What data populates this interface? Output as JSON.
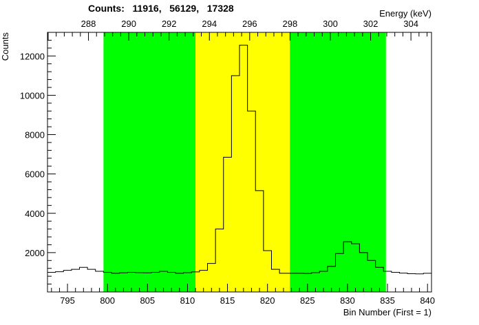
{
  "chart_data": {
    "type": "histogram",
    "title": "Counts:   11916,   56129,   17328",
    "xlabel": "Bin Number (First = 1)",
    "ylabel": "Counts",
    "x2label": "Energy (keV)",
    "xlim": [
      792.5,
      840.5
    ],
    "ylim": [
      0,
      13200
    ],
    "x_ticks": [
      795,
      800,
      805,
      810,
      815,
      820,
      825,
      830,
      835,
      840
    ],
    "y_ticks": [
      2000,
      4000,
      6000,
      8000,
      10000,
      12000
    ],
    "energy_ticks": [
      288,
      290,
      292,
      294,
      296,
      298,
      300,
      302,
      304
    ],
    "energy_bins": [
      788.3,
      840.7
    ],
    "energy_range": [
      284.3,
      305.1
    ],
    "regions": [
      {
        "name": "background-left",
        "x_range": [
          799.5,
          811.0
        ],
        "color": "#00ff00",
        "count": 11916
      },
      {
        "name": "peak",
        "x_range": [
          811.0,
          822.8
        ],
        "color": "#ffff00",
        "count": 56129
      },
      {
        "name": "background-right",
        "x_range": [
          822.8,
          834.8
        ],
        "color": "#00ff00",
        "count": 17328
      }
    ],
    "bins": [
      792,
      793,
      794,
      795,
      796,
      797,
      798,
      799,
      800,
      801,
      802,
      803,
      804,
      805,
      806,
      807,
      808,
      809,
      810,
      811,
      812,
      813,
      814,
      815,
      816,
      817,
      818,
      819,
      820,
      821,
      822,
      823,
      824,
      825,
      826,
      827,
      828,
      829,
      830,
      831,
      832,
      833,
      834,
      835,
      836,
      837,
      838,
      839,
      840
    ],
    "values": [
      1050,
      1000,
      1030,
      1100,
      1150,
      1250,
      1150,
      1050,
      1000,
      950,
      970,
      1000,
      980,
      970,
      1000,
      1050,
      1000,
      950,
      980,
      1020,
      1100,
      1450,
      3200,
      6850,
      11000,
      12550,
      9200,
      5150,
      2100,
      1150,
      950,
      950,
      950,
      940,
      980,
      1050,
      1300,
      1950,
      2550,
      2450,
      2000,
      1600,
      1250,
      1050,
      1000,
      960,
      930,
      920,
      950
    ]
  }
}
